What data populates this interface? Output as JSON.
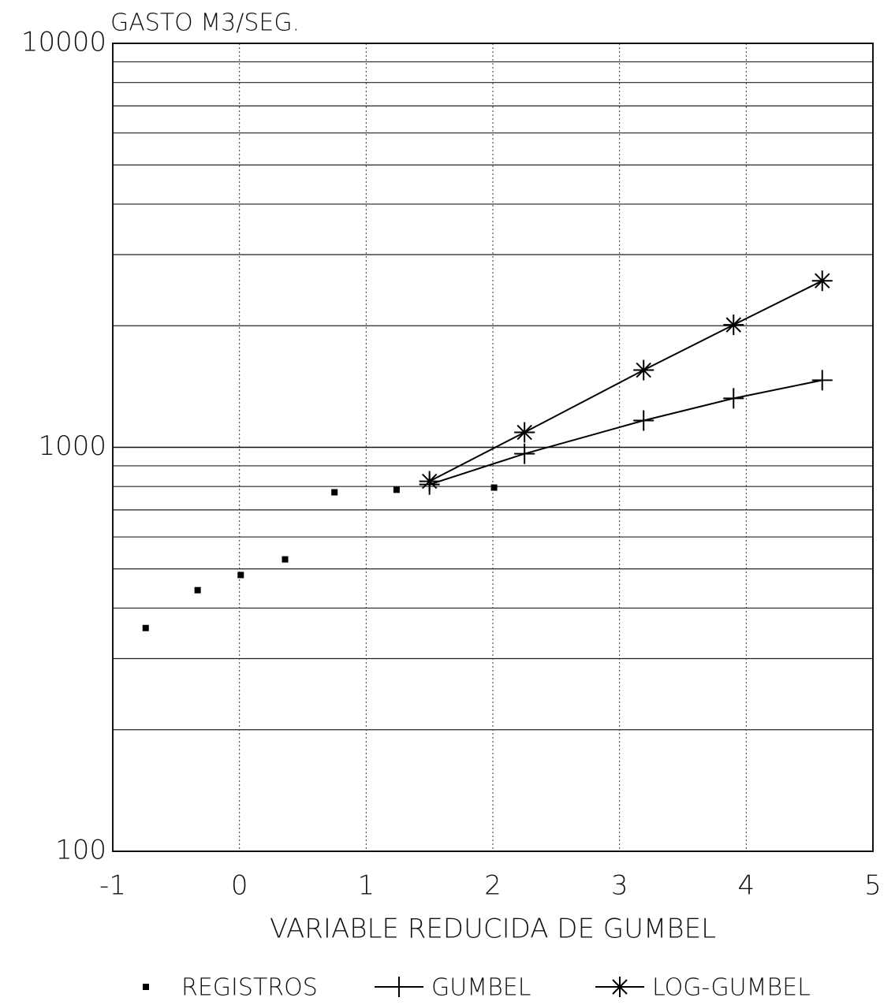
{
  "chart_data": {
    "type": "line",
    "title": "GASTO M3/SEG.",
    "xlabel": "VARIABLE REDUCIDA DE GUMBEL",
    "xlim": [
      -1,
      5
    ],
    "xticks": [
      -1,
      0,
      1,
      2,
      3,
      4,
      5
    ],
    "ylim": [
      100,
      10000
    ],
    "yticks": [
      100,
      1000,
      10000
    ],
    "ylog": true,
    "grid": true,
    "y_minor_grid": [
      200,
      300,
      400,
      500,
      600,
      700,
      800,
      900,
      2000,
      3000,
      4000,
      5000,
      6000,
      7000,
      8000,
      9000
    ],
    "series": [
      {
        "name": "REGISTROS",
        "color": "#000000",
        "marker": "square",
        "line": false,
        "x": [
          -0.74,
          -0.33,
          0.01,
          0.36,
          0.75,
          1.24,
          2.01
        ],
        "values": [
          357,
          443,
          483,
          528,
          774,
          785,
          795
        ]
      },
      {
        "name": "GUMBEL",
        "color": "#000000",
        "marker": "plus",
        "line": true,
        "x": [
          1.5,
          2.25,
          3.19,
          3.9,
          4.6
        ],
        "values": [
          809,
          964,
          1165,
          1322,
          1466
        ]
      },
      {
        "name": "LOG-GUMBEL",
        "color": "#000000",
        "marker": "asterisk",
        "line": true,
        "x": [
          1.5,
          2.25,
          3.19,
          3.9,
          4.6
        ],
        "values": [
          824,
          1089,
          1553,
          2010,
          2584
        ]
      }
    ]
  }
}
